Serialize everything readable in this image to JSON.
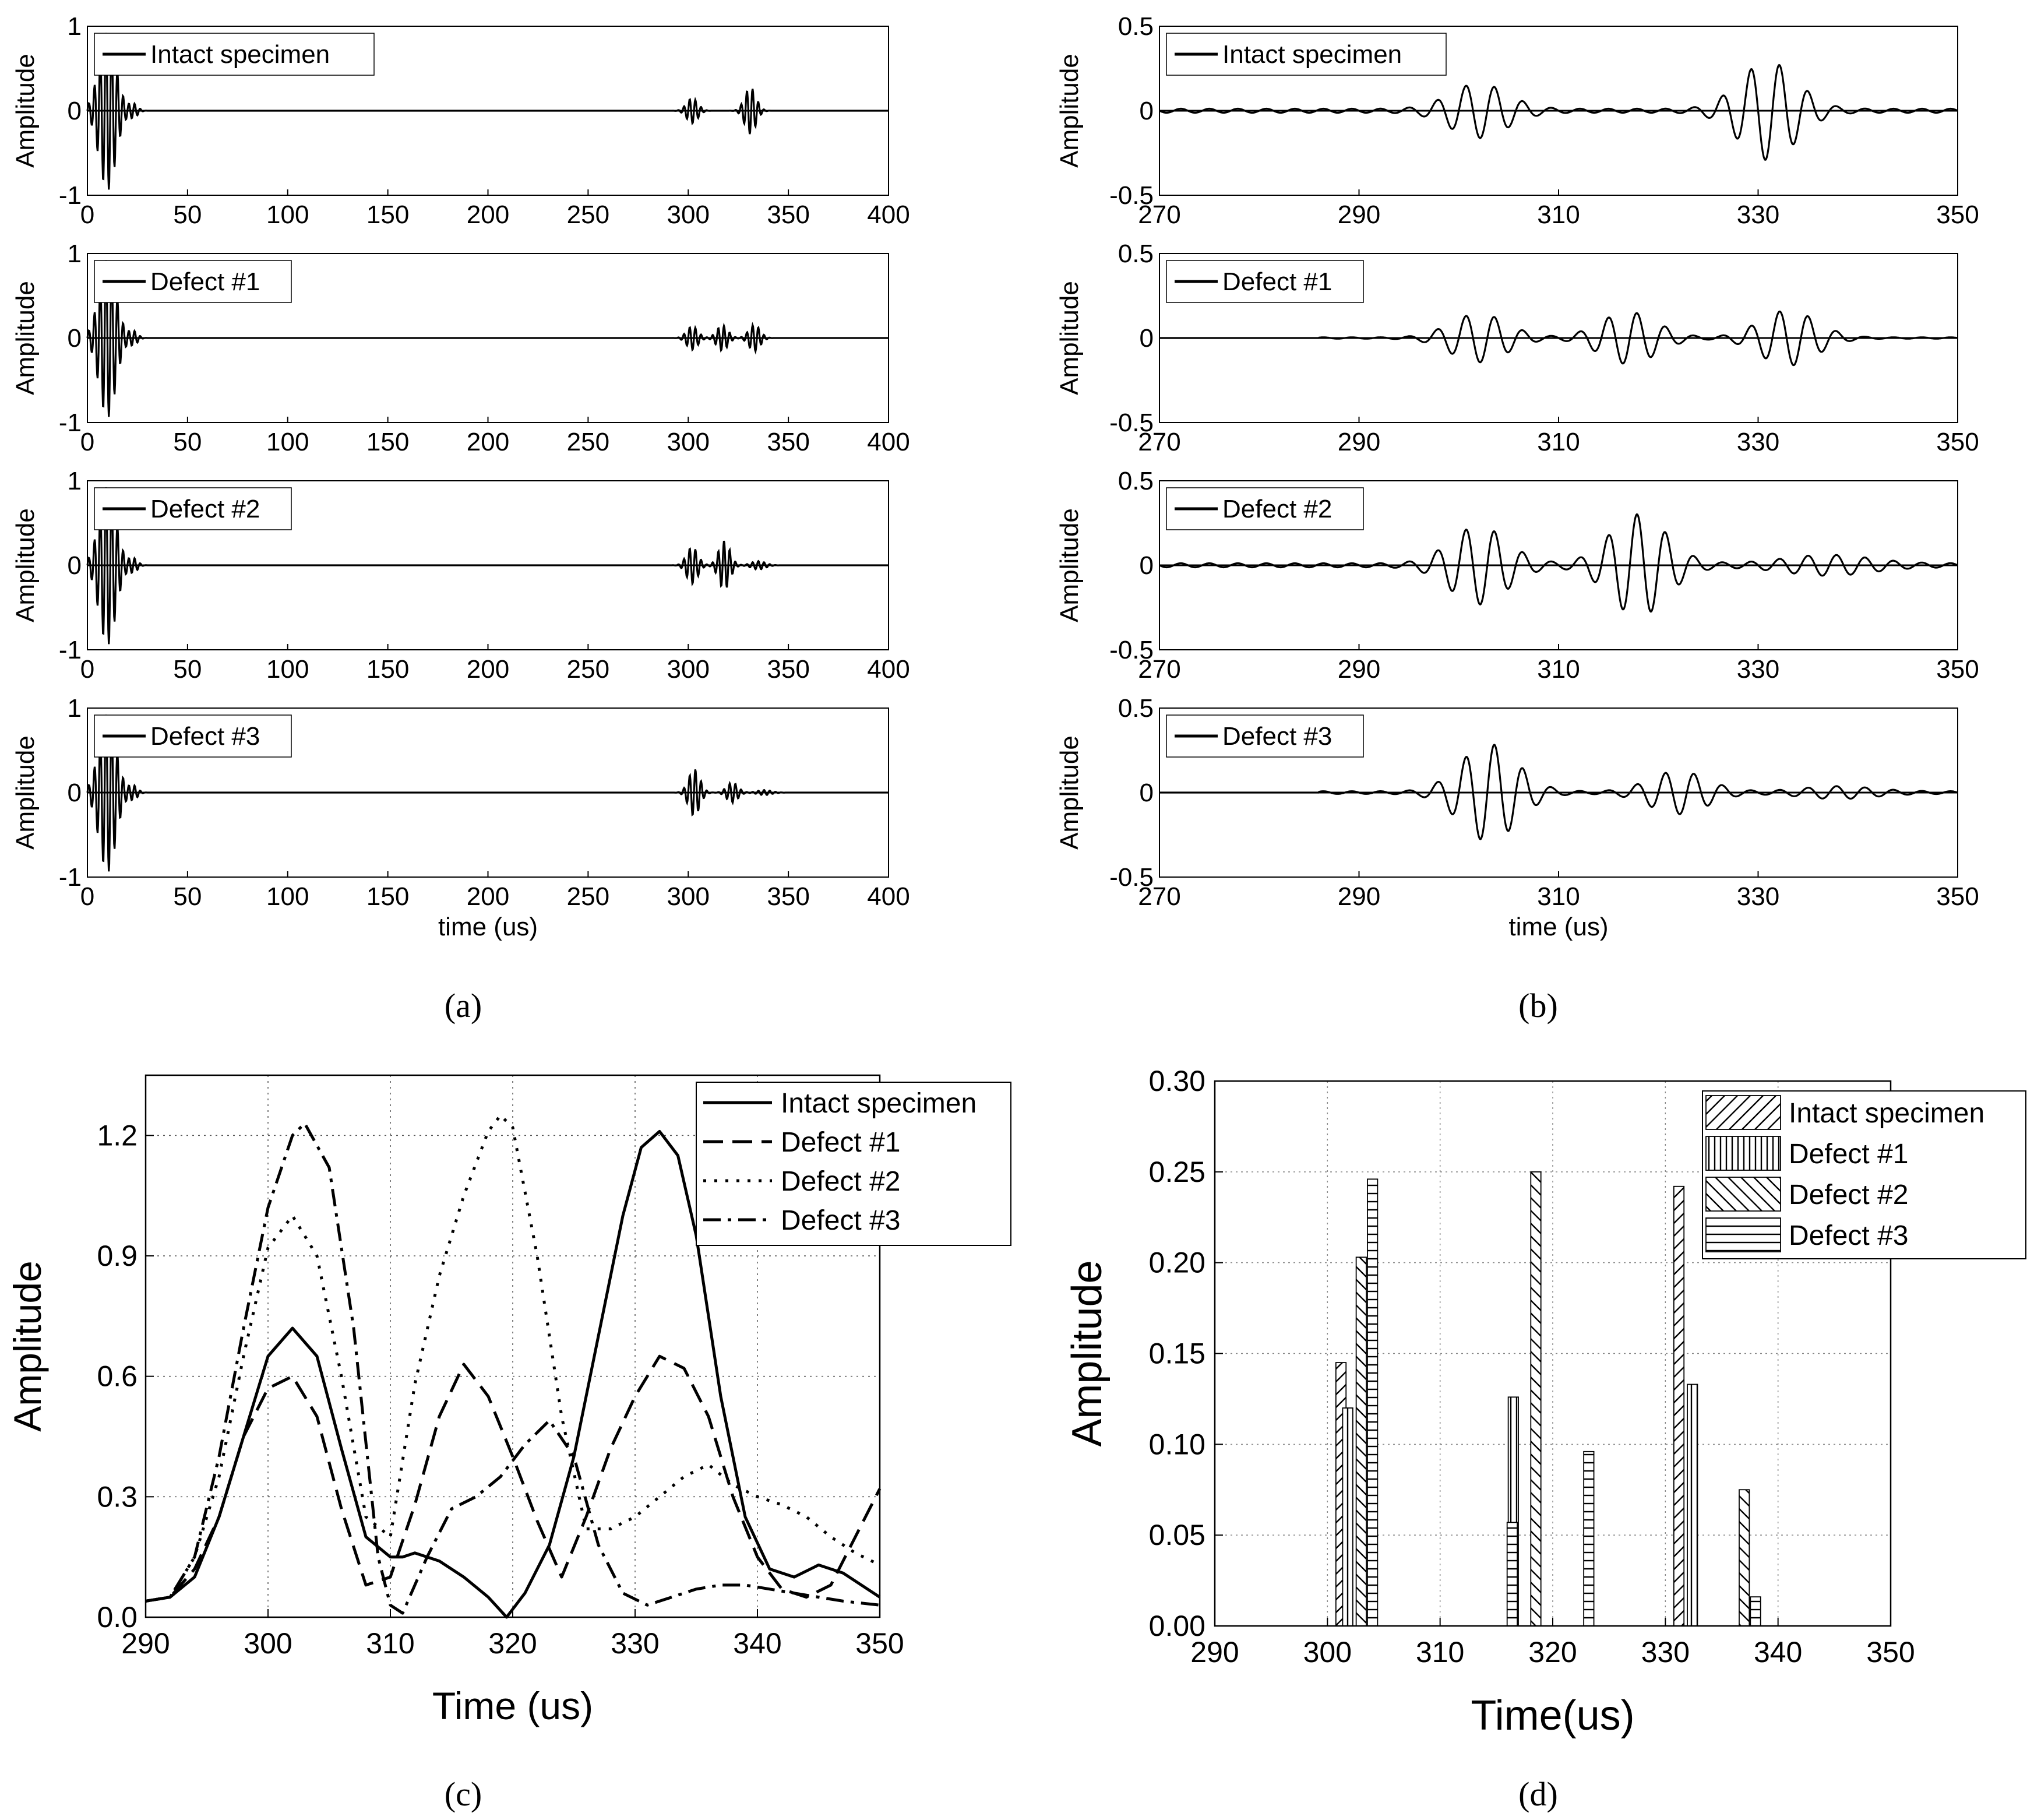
{
  "chart_data": [
    {
      "id": "a",
      "panel_label": "(a)",
      "type": "line",
      "subplots": [
        {
          "legend": "Intact specimen",
          "ylabel": "Amplitude",
          "x_ticks": [
            "0",
            "50",
            "100",
            "150",
            "200",
            "250",
            "300",
            "350",
            "400"
          ],
          "y_ticks": [
            "-1",
            "0",
            "1"
          ],
          "xlim": [
            0,
            400
          ],
          "ylim": [
            -1,
            1
          ],
          "envelope": [
            [
              10,
              0.95,
              6
            ],
            [
              23,
              0.08,
              3
            ],
            [
              302,
              0.15,
              4
            ],
            [
              331,
              0.28,
              4
            ]
          ]
        },
        {
          "legend": "Defect #1",
          "ylabel": "Amplitude",
          "x_ticks": [
            "0",
            "50",
            "100",
            "150",
            "200",
            "250",
            "300",
            "350",
            "400"
          ],
          "y_ticks": [
            "-1",
            "0",
            "1"
          ],
          "xlim": [
            0,
            400
          ],
          "ylim": [
            -1,
            1
          ],
          "envelope": [
            [
              10,
              0.95,
              6
            ],
            [
              23,
              0.08,
              3
            ],
            [
              302,
              0.14,
              4
            ],
            [
              317,
              0.15,
              4
            ],
            [
              333,
              0.16,
              4
            ]
          ]
        },
        {
          "legend": "Defect #2",
          "ylabel": "Amplitude",
          "x_ticks": [
            "0",
            "50",
            "100",
            "150",
            "200",
            "250",
            "300",
            "350",
            "400"
          ],
          "y_ticks": [
            "-1",
            "0",
            "1"
          ],
          "xlim": [
            0,
            400
          ],
          "ylim": [
            -1,
            1
          ],
          "envelope": [
            [
              10,
              0.95,
              6
            ],
            [
              23,
              0.08,
              3
            ],
            [
              302,
              0.22,
              4
            ],
            [
              318,
              0.29,
              4
            ],
            [
              335,
              0.05,
              5
            ]
          ]
        },
        {
          "legend": "Defect #3",
          "ylabel": "Amplitude",
          "x_ticks": [
            "0",
            "50",
            "100",
            "150",
            "200",
            "250",
            "300",
            "350",
            "400"
          ],
          "y_ticks": [
            "-1",
            "0",
            "1"
          ],
          "xlim": [
            0,
            400
          ],
          "ylim": [
            -1,
            1
          ],
          "envelope": [
            [
              10,
              0.95,
              6
            ],
            [
              23,
              0.08,
              3
            ],
            [
              303,
              0.28,
              4
            ],
            [
              322,
              0.12,
              4
            ],
            [
              338,
              0.03,
              5
            ]
          ]
        }
      ],
      "xlabel": "time (us)"
    },
    {
      "id": "b",
      "panel_label": "(b)",
      "type": "line",
      "subplots": [
        {
          "legend": "Intact specimen",
          "ylabel": "Amplitude",
          "x_ticks": [
            "270",
            "290",
            "310",
            "330",
            "350"
          ],
          "y_ticks": [
            "0.5",
            "0",
            "-0.5"
          ],
          "xlim": [
            270,
            350
          ],
          "ylim": [
            -0.5,
            0.5
          ],
          "envelope": [
            [
              302,
              0.15,
              4
            ],
            [
              331,
              0.28,
              4
            ]
          ],
          "noise": 0.012,
          "noise_start": 270
        },
        {
          "legend": "Defect #1",
          "ylabel": "Amplitude",
          "x_ticks": [
            "270",
            "290",
            "310",
            "330",
            "350"
          ],
          "y_ticks": [
            "0.5",
            "0",
            "-0.5"
          ],
          "xlim": [
            270,
            350
          ],
          "ylim": [
            -0.5,
            0.5
          ],
          "envelope": [
            [
              302,
              0.14,
              4
            ],
            [
              317,
              0.15,
              4
            ],
            [
              333,
              0.16,
              4
            ]
          ],
          "noise": 0.004,
          "noise_start": 286
        },
        {
          "legend": "Defect #2",
          "ylabel": "Amplitude",
          "x_ticks": [
            "270",
            "290",
            "310",
            "330",
            "350"
          ],
          "y_ticks": [
            "0.5",
            "0",
            "-0.5"
          ],
          "xlim": [
            270,
            350
          ],
          "ylim": [
            -0.5,
            0.5
          ],
          "envelope": [
            [
              302,
              0.22,
              4
            ],
            [
              318,
              0.29,
              4
            ],
            [
              337,
              0.05,
              6
            ]
          ],
          "noise": 0.012,
          "noise_start": 270
        },
        {
          "legend": "Defect #3",
          "ylabel": "Amplitude",
          "x_ticks": [
            "270",
            "290",
            "310",
            "330",
            "350"
          ],
          "y_ticks": [
            "0.5",
            "0",
            "-0.5"
          ],
          "xlim": [
            270,
            350
          ],
          "ylim": [
            -0.5,
            0.5
          ],
          "envelope": [
            [
              303,
              0.28,
              4
            ],
            [
              322,
              0.12,
              4
            ],
            [
              338,
              0.03,
              5
            ]
          ],
          "noise": 0.008,
          "noise_start": 286
        }
      ],
      "xlabel": "time (us)"
    },
    {
      "id": "c",
      "panel_label": "(c)",
      "type": "line",
      "xlabel": "Time (us)",
      "ylabel": "Amplitude",
      "xlim": [
        290,
        350
      ],
      "ylim": [
        0,
        1.35
      ],
      "x_ticks": [
        "290",
        "300",
        "310",
        "320",
        "330",
        "340",
        "350"
      ],
      "y_ticks": [
        "0.0",
        "0.3",
        "0.6",
        "0.9",
        "1.2"
      ],
      "grid": true,
      "legend_position": "top-right",
      "series": [
        {
          "name": "Intact specimen",
          "dash": "solid",
          "x": [
            290,
            292,
            294,
            296,
            298,
            300,
            302,
            304,
            306,
            308,
            310,
            311,
            312,
            314,
            316,
            318,
            319.5,
            321,
            323,
            325,
            327,
            329,
            330.5,
            332,
            333.5,
            335,
            337,
            339,
            341,
            343,
            345,
            347,
            350
          ],
          "y": [
            0.04,
            0.05,
            0.1,
            0.25,
            0.45,
            0.65,
            0.72,
            0.65,
            0.42,
            0.2,
            0.15,
            0.15,
            0.16,
            0.14,
            0.1,
            0.05,
            0.0,
            0.06,
            0.18,
            0.4,
            0.7,
            1.0,
            1.17,
            1.21,
            1.15,
            0.95,
            0.55,
            0.25,
            0.12,
            0.1,
            0.13,
            0.11,
            0.05
          ]
        },
        {
          "name": "Defect #1",
          "dash": "long-dash",
          "x": [
            290,
            292,
            294,
            296,
            298,
            300,
            302,
            304,
            306,
            308,
            310,
            312,
            314,
            316,
            318,
            320,
            322,
            324,
            326,
            328,
            330,
            332,
            334,
            336,
            338,
            340,
            342,
            344,
            346,
            348,
            350
          ],
          "y": [
            0.04,
            0.05,
            0.12,
            0.25,
            0.45,
            0.57,
            0.6,
            0.5,
            0.27,
            0.08,
            0.1,
            0.28,
            0.5,
            0.63,
            0.55,
            0.4,
            0.24,
            0.1,
            0.25,
            0.42,
            0.55,
            0.65,
            0.62,
            0.5,
            0.3,
            0.15,
            0.07,
            0.05,
            0.08,
            0.2,
            0.32
          ]
        },
        {
          "name": "Defect #2",
          "dash": "dotted",
          "x": [
            290,
            292,
            294,
            296,
            298,
            300,
            302,
            304,
            306,
            308,
            310,
            312,
            314,
            316,
            318,
            319,
            320,
            322,
            324,
            326,
            328,
            330,
            332,
            334,
            336,
            338,
            340,
            342,
            344,
            346,
            348,
            350
          ],
          "y": [
            0.04,
            0.05,
            0.15,
            0.35,
            0.65,
            0.92,
            1.0,
            0.9,
            0.6,
            0.25,
            0.2,
            0.58,
            0.85,
            1.05,
            1.21,
            1.25,
            1.22,
            0.9,
            0.5,
            0.22,
            0.22,
            0.25,
            0.3,
            0.35,
            0.38,
            0.33,
            0.3,
            0.28,
            0.25,
            0.2,
            0.16,
            0.13
          ]
        },
        {
          "name": "Defect #3",
          "dash": "dash-dot",
          "x": [
            290,
            292,
            294,
            296,
            298,
            300,
            302,
            303,
            305,
            307,
            309,
            310,
            311,
            313,
            315,
            317,
            319,
            321,
            323,
            325,
            327,
            329,
            331,
            333,
            335,
            337,
            339,
            341,
            343,
            345,
            347,
            350
          ],
          "y": [
            0.04,
            0.05,
            0.15,
            0.4,
            0.72,
            1.02,
            1.2,
            1.23,
            1.12,
            0.72,
            0.15,
            0.03,
            0.01,
            0.15,
            0.27,
            0.3,
            0.35,
            0.43,
            0.49,
            0.4,
            0.18,
            0.06,
            0.03,
            0.05,
            0.07,
            0.08,
            0.08,
            0.07,
            0.06,
            0.05,
            0.04,
            0.03
          ]
        }
      ]
    },
    {
      "id": "d",
      "panel_label": "(d)",
      "type": "bar",
      "xlabel": "Time(us)",
      "ylabel": "Amplitude",
      "xlim": [
        290,
        350
      ],
      "ylim": [
        0,
        0.3
      ],
      "x_ticks": [
        "290",
        "300",
        "310",
        "320",
        "330",
        "340",
        "350"
      ],
      "y_ticks": [
        "0.00",
        "0.05",
        "0.10",
        "0.15",
        "0.20",
        "0.25",
        "0.30"
      ],
      "grid": true,
      "legend_position": "top-right",
      "bar_width": 0.9,
      "series": [
        {
          "name": "Intact specimen",
          "pattern": "diag-up",
          "x": [
            301.2,
            331.2
          ],
          "values": [
            0.145,
            0.242
          ]
        },
        {
          "name": "Defect #1",
          "pattern": "vertical",
          "x": [
            301.8,
            316.5,
            332.4
          ],
          "values": [
            0.12,
            0.126,
            0.133
          ]
        },
        {
          "name": "Defect #2",
          "pattern": "diag-down",
          "x": [
            303.0,
            318.5,
            337.0
          ],
          "values": [
            0.203,
            0.25,
            0.075
          ]
        },
        {
          "name": "Defect #3",
          "pattern": "horizontal",
          "x": [
            304.0,
            316.4,
            323.2,
            338.0
          ],
          "values": [
            0.246,
            0.057,
            0.096,
            0.016
          ]
        }
      ]
    }
  ]
}
